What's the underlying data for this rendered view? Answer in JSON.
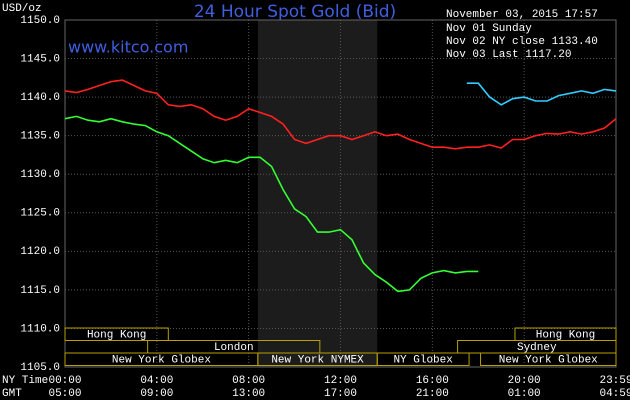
{
  "chart_data": {
    "type": "line",
    "title": "24 Hour Spot Gold (Bid)",
    "subtitle": "www.kitco.com",
    "timestamp": "November 03, 2015 17:57",
    "y_label": "USD/oz",
    "x_label": "NY Time",
    "x2_label": "GMT",
    "grid": true,
    "xlim": [
      0,
      24
    ],
    "ylim": [
      1105,
      1150
    ],
    "yticks": [
      {
        "value": 1105,
        "label": "1105.0"
      },
      {
        "value": 1110,
        "label": "1110.0"
      },
      {
        "value": 1115,
        "label": "1115.0"
      },
      {
        "value": 1120,
        "label": "1120.0"
      },
      {
        "value": 1125,
        "label": "1125.0"
      },
      {
        "value": 1130,
        "label": "1130.0"
      },
      {
        "value": 1135,
        "label": "1135.0"
      },
      {
        "value": 1140,
        "label": "1140.0"
      },
      {
        "value": 1145,
        "label": "1145.0"
      },
      {
        "value": 1150,
        "label": "1150.0"
      }
    ],
    "xticks": [
      {
        "value": 0,
        "label": "00:00"
      },
      {
        "value": 4,
        "label": "04:00"
      },
      {
        "value": 8,
        "label": "08:00"
      },
      {
        "value": 12,
        "label": "12:00"
      },
      {
        "value": 16,
        "label": "16:00"
      },
      {
        "value": 20,
        "label": "20:00"
      },
      {
        "value": 24,
        "label": "23:59"
      }
    ],
    "x2ticks": [
      {
        "value": 0,
        "label": "05:00"
      },
      {
        "value": 4,
        "label": "09:00"
      },
      {
        "value": 8,
        "label": "13:00"
      },
      {
        "value": 12,
        "label": "17:00"
      },
      {
        "value": 16,
        "label": "21:00"
      },
      {
        "value": 20,
        "label": "01:00"
      },
      {
        "value": 24,
        "label": "04:59"
      }
    ],
    "highlight": [
      8.4,
      13.6
    ],
    "session_rows": [
      [
        {
          "label": "Hong Kong",
          "start": 0,
          "end": 4.5
        },
        {
          "label": "Hong Kong",
          "start": 19.6,
          "end": 24
        }
      ],
      [
        {
          "label": "London",
          "start": 3.6,
          "end": 11.1
        },
        {
          "label": "Sydney",
          "start": 17.1,
          "end": 24
        }
      ],
      [
        {
          "label": "New York Globex",
          "start": 0,
          "end": 8.4
        },
        {
          "label": "New York NYMEX",
          "start": 8.4,
          "end": 13.6
        },
        {
          "label": "NY Globex",
          "start": 13.6,
          "end": 17.6
        },
        {
          "label": "New York Globex",
          "start": 18.1,
          "end": 24
        }
      ]
    ],
    "x": [
      0,
      0.5,
      1,
      1.5,
      2,
      2.5,
      3,
      3.5,
      4,
      4.5,
      5,
      5.5,
      6,
      6.5,
      7,
      7.5,
      8,
      8.5,
      9,
      9.5,
      10,
      10.5,
      11,
      11.5,
      12,
      12.5,
      13,
      13.5,
      14,
      14.5,
      15,
      15.5,
      16,
      16.5,
      17,
      17.5,
      18,
      18.5,
      19,
      19.5,
      20,
      20.5,
      21,
      21.5,
      22,
      22.5,
      23,
      23.5,
      24
    ],
    "series": [
      {
        "name": "Nov 01 Sunday",
        "color": "#33ccff",
        "values": [
          null,
          null,
          null,
          null,
          null,
          null,
          null,
          null,
          null,
          null,
          null,
          null,
          null,
          null,
          null,
          null,
          null,
          null,
          null,
          null,
          null,
          null,
          null,
          null,
          null,
          null,
          null,
          null,
          null,
          null,
          null,
          null,
          null,
          null,
          null,
          1141.8,
          1141.8,
          1140,
          1139,
          1139.8,
          1140,
          1139.5,
          1139.5,
          1140.2,
          1140.5,
          1140.8,
          1140.5,
          1141,
          1140.8
        ]
      },
      {
        "name": "Nov 02 NY close 1133.40",
        "color": "#ff2020",
        "values": [
          1140.8,
          1140.6,
          1141,
          1141.5,
          1142,
          1142.2,
          1141.5,
          1140.8,
          1140.5,
          1139,
          1138.8,
          1139,
          1138.5,
          1137.5,
          1137,
          1137.5,
          1138.5,
          1138,
          1137.5,
          1136.5,
          1134.5,
          1134,
          1134.5,
          1135,
          1135,
          1134.5,
          1135,
          1135.5,
          1135,
          1135.2,
          1134.5,
          1134,
          1133.5,
          1133.5,
          1133.3,
          1133.5,
          1133.5,
          1133.8,
          1133.4,
          1134.5,
          1134.5,
          1135,
          1135.3,
          1135.2,
          1135.5,
          1135.2,
          1135.5,
          1136,
          1137.2
        ]
      },
      {
        "name": "Nov 03 Last 1117.20",
        "color": "#33ff33",
        "values": [
          1137.2,
          1137.5,
          1137,
          1136.8,
          1137.2,
          1136.8,
          1136.5,
          1136.3,
          1135.5,
          1135,
          1134,
          1133,
          1132,
          1131.5,
          1131.8,
          1131.5,
          1132.2,
          1132.2,
          1131,
          1128,
          1125.5,
          1124.5,
          1122.5,
          1122.5,
          1122.8,
          1121.5,
          1118.5,
          1117,
          1116,
          1114.8,
          1115,
          1116.5,
          1117.2,
          1117.5,
          1117.2,
          1117.4,
          1117.4,
          null,
          null,
          null,
          null,
          null,
          null,
          null,
          null,
          null,
          null,
          null,
          null
        ]
      }
    ]
  }
}
